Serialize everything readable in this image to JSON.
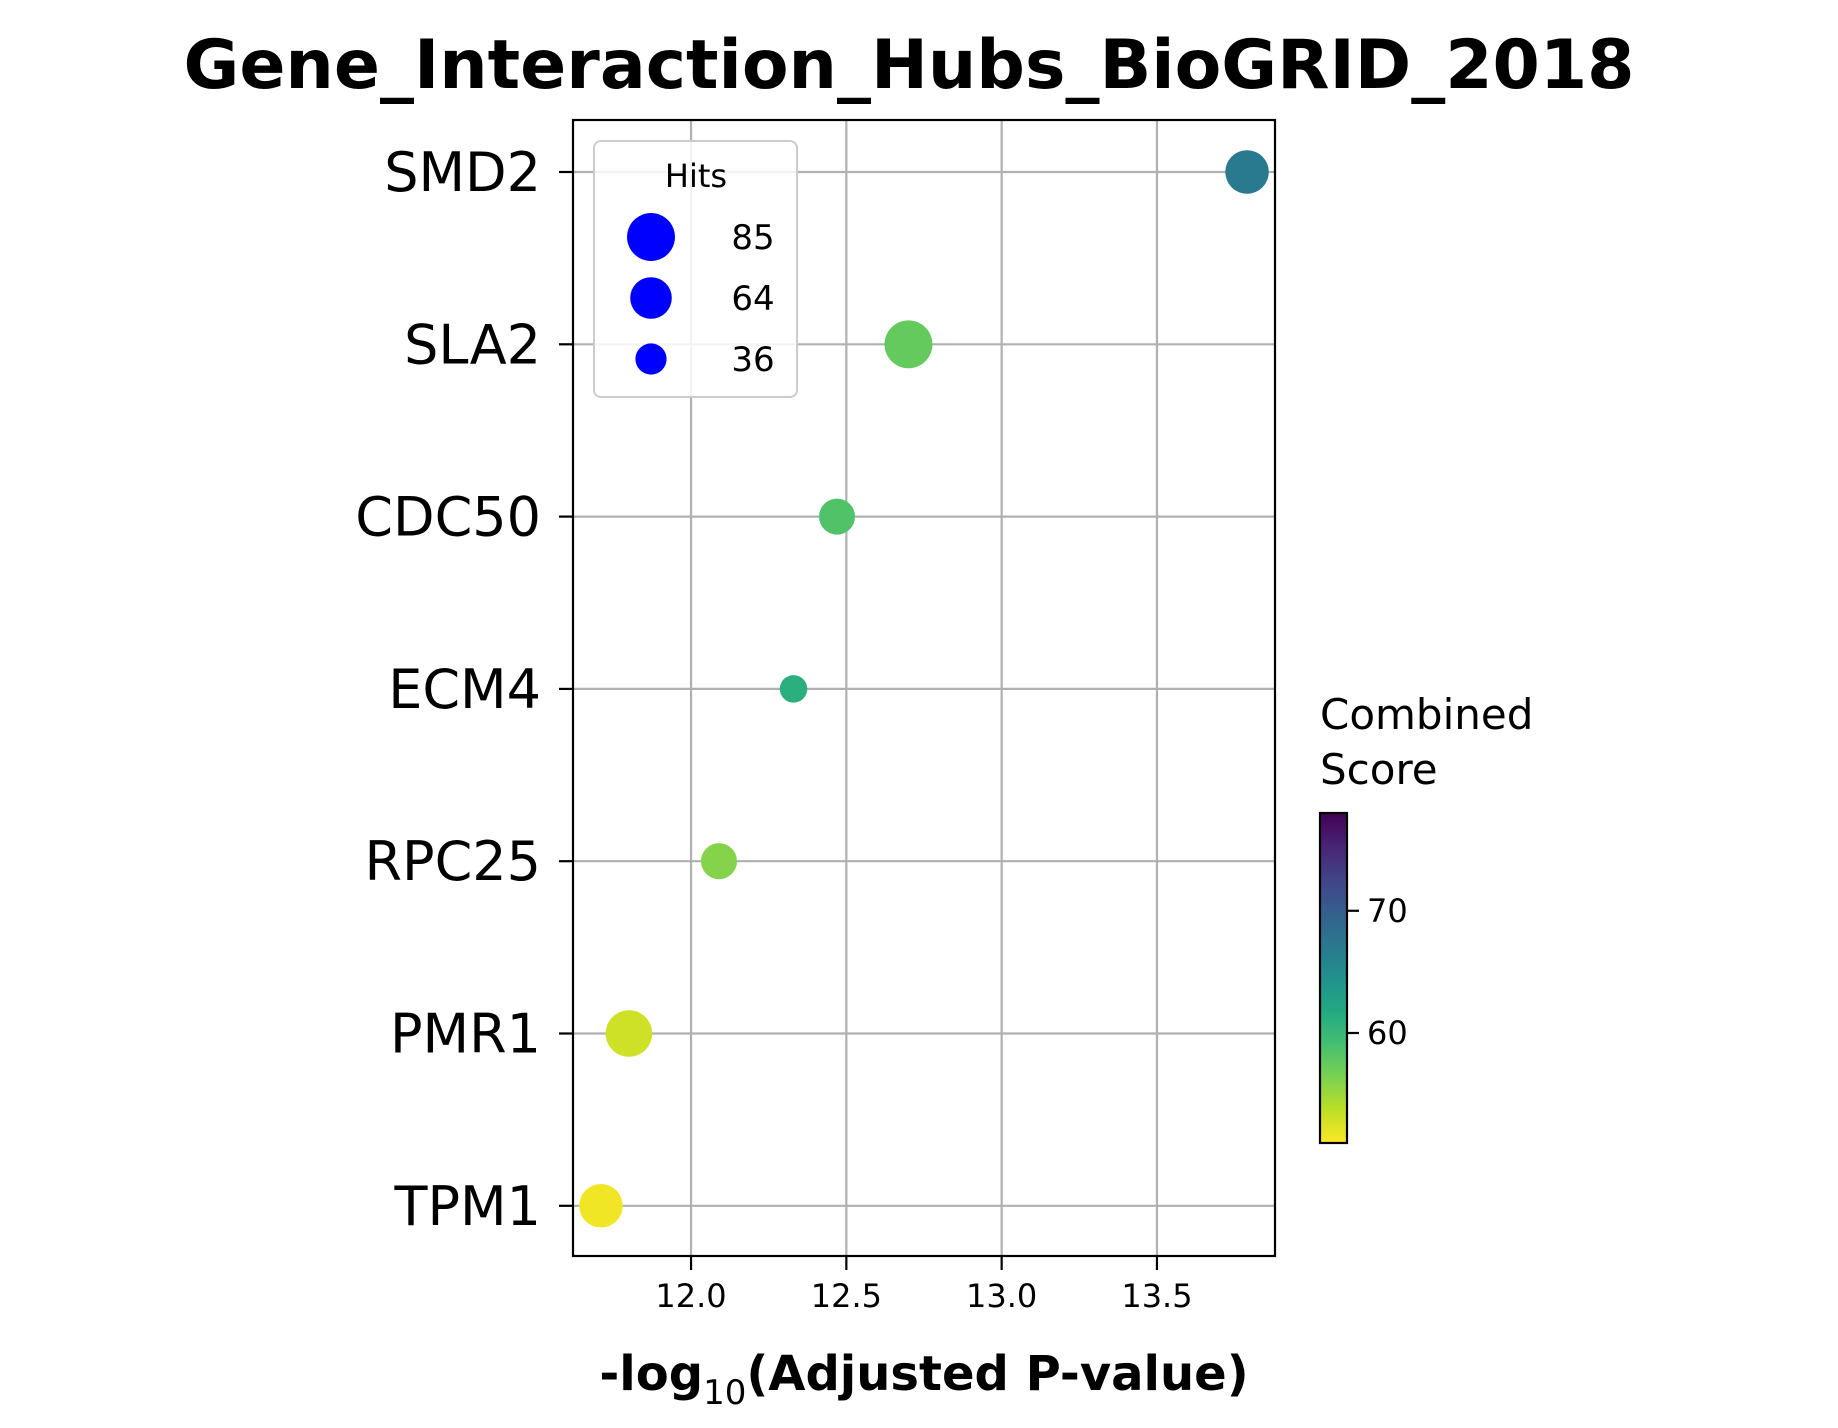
{
  "chart_data": {
    "type": "scatter",
    "title": "Gene_Interaction_Hubs_BioGRID_2018",
    "xlabel_prefix": "-log",
    "xlabel_sub": "10",
    "xlabel_suffix": "(Adjusted P-value)",
    "xlim": [
      11.62,
      13.88
    ],
    "x_ticks": [
      12.0,
      12.5,
      13.0,
      13.5
    ],
    "x_tick_labels": [
      "12.0",
      "12.5",
      "13.0",
      "13.5"
    ],
    "grid": true,
    "categories": [
      "SMD2",
      "SLA2",
      "CDC50",
      "ECM4",
      "RPC25",
      "PMR1",
      "TPM1"
    ],
    "points": [
      {
        "term": "SMD2",
        "x": 13.79,
        "hits": 70,
        "score": 67.0
      },
      {
        "term": "SLA2",
        "x": 12.7,
        "hits": 85,
        "score": 57.5
      },
      {
        "term": "CDC50",
        "x": 12.47,
        "hits": 48,
        "score": 58.5
      },
      {
        "term": "ECM4",
        "x": 12.33,
        "hits": 28,
        "score": 61.0
      },
      {
        "term": "RPC25",
        "x": 12.09,
        "hits": 48,
        "score": 56.0
      },
      {
        "term": "PMR1",
        "x": 11.8,
        "hits": 80,
        "score": 53.0
      },
      {
        "term": "TPM1",
        "x": 11.71,
        "hits": 70,
        "score": 51.5
      }
    ],
    "size_legend": {
      "title": "Hits",
      "placement": "upper-left",
      "color": "#0000ff",
      "entries": [
        {
          "label": "85",
          "hits": 85
        },
        {
          "label": "64",
          "hits": 64
        },
        {
          "label": "36",
          "hits": 36
        }
      ]
    },
    "colorbar": {
      "title_line1": "Combined",
      "title_line2": "Score",
      "colormap": "viridis_r",
      "range": [
        51.0,
        78.0
      ],
      "ticks": [
        60,
        70
      ],
      "tick_labels": [
        "60",
        "70"
      ]
    }
  }
}
